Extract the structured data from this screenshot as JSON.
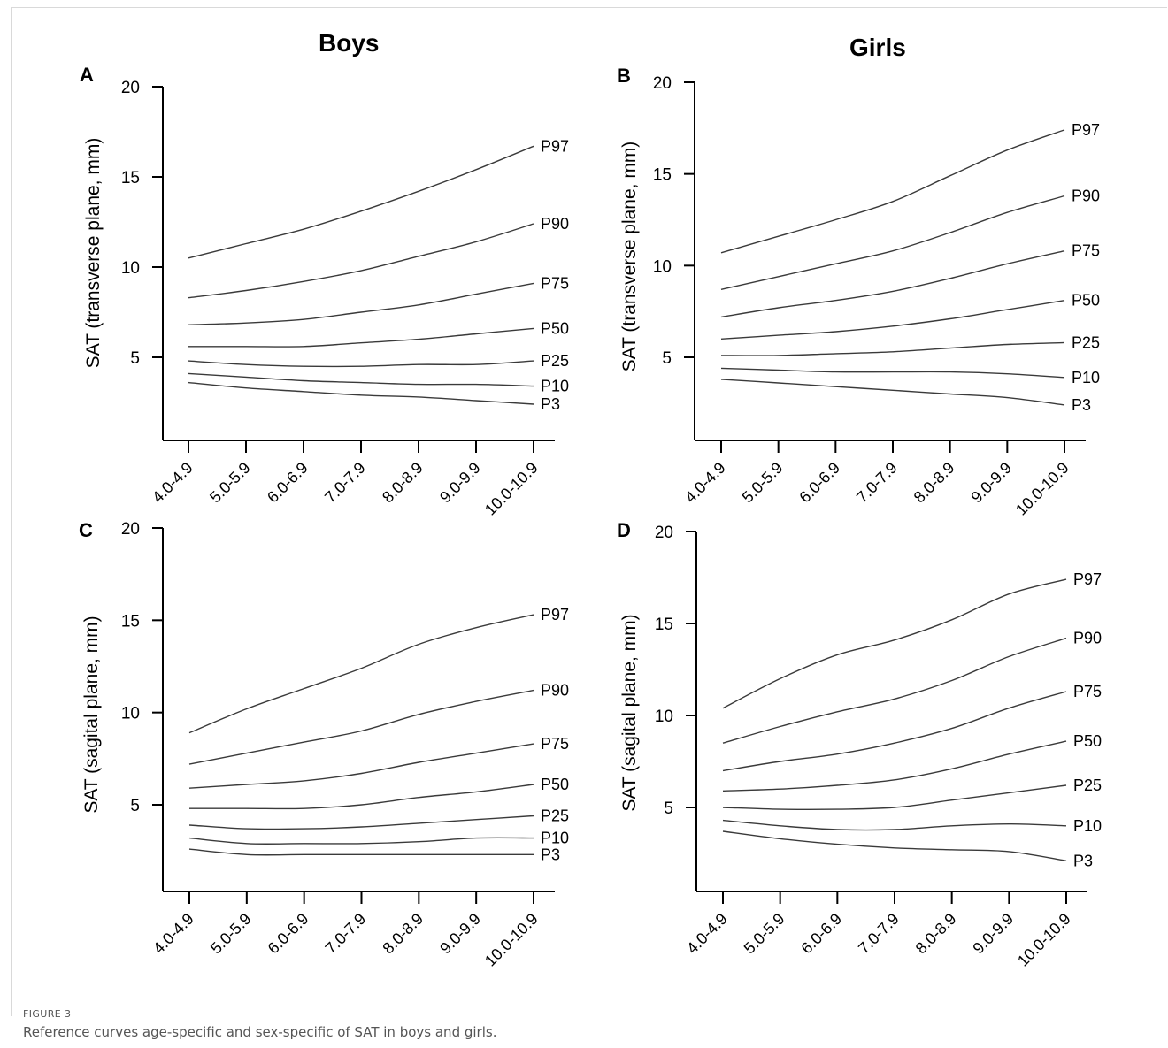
{
  "columns": {
    "left": "Boys",
    "right": "Girls"
  },
  "figure": {
    "label": "FIGURE 3",
    "caption": "Reference curves age-specific and sex-specific of SAT in boys and girls."
  },
  "chart_data": [
    {
      "id": "A",
      "panel_label": "A",
      "type": "line",
      "ylabel": "SAT (transverse plane, mm)",
      "ylim": [
        0,
        20
      ],
      "yticks": [
        5,
        10,
        15,
        20
      ],
      "categories": [
        "4.0-4.9",
        "5.0-5.9",
        "6.0-6.9",
        "7.0-7.9",
        "8.0-8.9",
        "9.0-9.9",
        "10.0-10.9"
      ],
      "series": [
        {
          "name": "P97",
          "values": [
            10.5,
            11.3,
            12.1,
            13.1,
            14.2,
            15.4,
            16.7
          ]
        },
        {
          "name": "P90",
          "values": [
            8.3,
            8.7,
            9.2,
            9.8,
            10.6,
            11.4,
            12.4
          ]
        },
        {
          "name": "P75",
          "values": [
            6.8,
            6.9,
            7.1,
            7.5,
            7.9,
            8.5,
            9.1
          ]
        },
        {
          "name": "P50",
          "values": [
            5.6,
            5.6,
            5.6,
            5.8,
            6.0,
            6.3,
            6.6
          ]
        },
        {
          "name": "P25",
          "values": [
            4.8,
            4.6,
            4.5,
            4.5,
            4.6,
            4.6,
            4.8
          ]
        },
        {
          "name": "P10",
          "values": [
            4.1,
            3.9,
            3.7,
            3.6,
            3.5,
            3.5,
            3.4
          ]
        },
        {
          "name": "P3",
          "values": [
            3.6,
            3.3,
            3.1,
            2.9,
            2.8,
            2.6,
            2.4
          ]
        }
      ]
    },
    {
      "id": "B",
      "panel_label": "B",
      "type": "line",
      "ylabel": "SAT (transverse plane, mm)",
      "ylim": [
        0,
        20
      ],
      "yticks": [
        5,
        10,
        15,
        20
      ],
      "categories": [
        "4.0-4.9",
        "5.0-5.9",
        "6.0-6.9",
        "7.0-7.9",
        "8.0-8.9",
        "9.0-9.9",
        "10.0-10.9"
      ],
      "series": [
        {
          "name": "P97",
          "values": [
            10.7,
            11.6,
            12.5,
            13.5,
            14.9,
            16.3,
            17.4
          ]
        },
        {
          "name": "P90",
          "values": [
            8.7,
            9.4,
            10.1,
            10.8,
            11.8,
            12.9,
            13.8
          ]
        },
        {
          "name": "P75",
          "values": [
            7.2,
            7.7,
            8.1,
            8.6,
            9.3,
            10.1,
            10.8
          ]
        },
        {
          "name": "P50",
          "values": [
            6.0,
            6.2,
            6.4,
            6.7,
            7.1,
            7.6,
            8.1
          ]
        },
        {
          "name": "P25",
          "values": [
            5.1,
            5.1,
            5.2,
            5.3,
            5.5,
            5.7,
            5.8
          ]
        },
        {
          "name": "P10",
          "values": [
            4.4,
            4.3,
            4.2,
            4.2,
            4.2,
            4.1,
            3.9
          ]
        },
        {
          "name": "P3",
          "values": [
            3.8,
            3.6,
            3.4,
            3.2,
            3.0,
            2.8,
            2.4
          ]
        }
      ]
    },
    {
      "id": "C",
      "panel_label": "C",
      "type": "line",
      "ylabel": "SAT (sagital plane, mm)",
      "ylim": [
        0,
        20
      ],
      "yticks": [
        5,
        10,
        15,
        20
      ],
      "categories": [
        "4.0-4.9",
        "5.0-5.9",
        "6.0-6.9",
        "7.0-7.9",
        "8.0-8.9",
        "9.0-9.9",
        "10.0-10.9"
      ],
      "series": [
        {
          "name": "P97",
          "values": [
            8.9,
            10.2,
            11.3,
            12.4,
            13.7,
            14.6,
            15.3
          ]
        },
        {
          "name": "P90",
          "values": [
            7.2,
            7.8,
            8.4,
            9.0,
            9.9,
            10.6,
            11.2
          ]
        },
        {
          "name": "P75",
          "values": [
            5.9,
            6.1,
            6.3,
            6.7,
            7.3,
            7.8,
            8.3
          ]
        },
        {
          "name": "P50",
          "values": [
            4.8,
            4.8,
            4.8,
            5.0,
            5.4,
            5.7,
            6.1
          ]
        },
        {
          "name": "P25",
          "values": [
            3.9,
            3.7,
            3.7,
            3.8,
            4.0,
            4.2,
            4.4
          ]
        },
        {
          "name": "P10",
          "values": [
            3.2,
            2.9,
            2.9,
            2.9,
            3.0,
            3.2,
            3.2
          ]
        },
        {
          "name": "P3",
          "values": [
            2.6,
            2.3,
            2.3,
            2.3,
            2.3,
            2.3,
            2.3
          ]
        }
      ]
    },
    {
      "id": "D",
      "panel_label": "D",
      "type": "line",
      "ylabel": "SAT (sagital plane, mm)",
      "ylim": [
        0,
        20
      ],
      "yticks": [
        5,
        10,
        15,
        20
      ],
      "categories": [
        "4.0-4.9",
        "5.0-5.9",
        "6.0-6.9",
        "7.0-7.9",
        "8.0-8.9",
        "9.0-9.9",
        "10.0-10.9"
      ],
      "series": [
        {
          "name": "P97",
          "values": [
            10.4,
            12.0,
            13.3,
            14.1,
            15.2,
            16.6,
            17.4
          ]
        },
        {
          "name": "P90",
          "values": [
            8.5,
            9.4,
            10.2,
            10.9,
            11.9,
            13.2,
            14.2
          ]
        },
        {
          "name": "P75",
          "values": [
            7.0,
            7.5,
            7.9,
            8.5,
            9.3,
            10.4,
            11.3
          ]
        },
        {
          "name": "P50",
          "values": [
            5.9,
            6.0,
            6.2,
            6.5,
            7.1,
            7.9,
            8.6
          ]
        },
        {
          "name": "P25",
          "values": [
            5.0,
            4.9,
            4.9,
            5.0,
            5.4,
            5.8,
            6.2
          ]
        },
        {
          "name": "P10",
          "values": [
            4.3,
            4.0,
            3.8,
            3.8,
            4.0,
            4.1,
            4.0
          ]
        },
        {
          "name": "P3",
          "values": [
            3.7,
            3.3,
            3.0,
            2.8,
            2.7,
            2.6,
            2.1
          ]
        }
      ]
    }
  ]
}
